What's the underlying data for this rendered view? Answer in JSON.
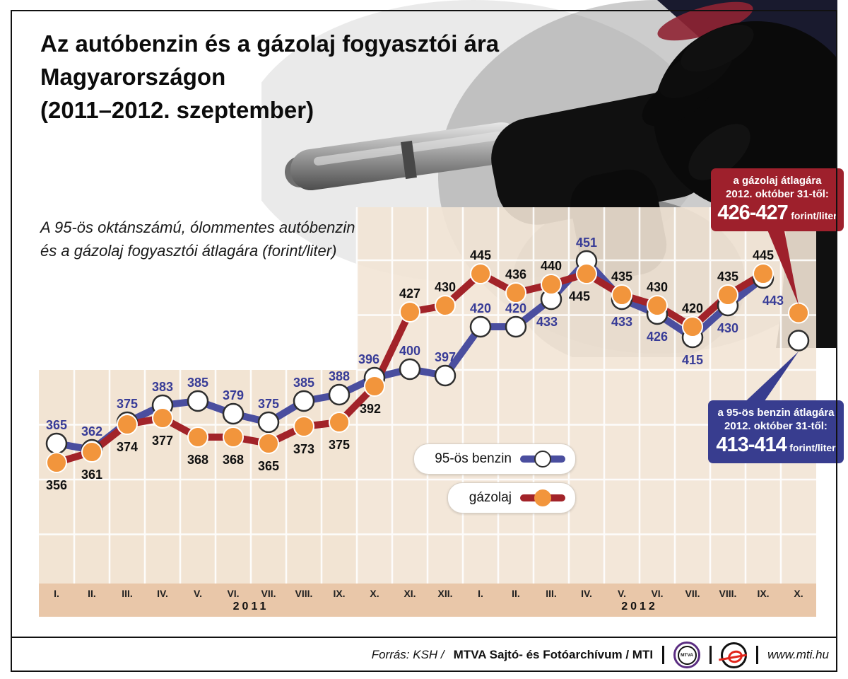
{
  "title": {
    "line1": "Az autóbenzin és a gázolaj fogyasztói ára",
    "line2": "Magyarországon",
    "line3": "(2011–2012. szeptember)"
  },
  "subtitle": {
    "line1": "A 95-ös oktánszámú, ólommentes autóbenzin",
    "line2": "és a gázolaj fogyasztói átlagára (forint/liter)"
  },
  "colors": {
    "panel_left": "#f2e4d3",
    "panel_tall": "rgba(242,228,213,0.9)",
    "axis_strip": "#e9c7a9",
    "benzin_line": "#4a4e9f",
    "benzin_label": "#383c97",
    "gazolaj_line": "#a22329",
    "orange_marker": "#f2953c",
    "callout_red": "#9e202c",
    "callout_blue": "#383d8f"
  },
  "chart_data": {
    "type": "line",
    "unit": "forint/liter",
    "months": [
      "I.",
      "II.",
      "III.",
      "IV.",
      "V.",
      "VI.",
      "VII.",
      "VIII.",
      "IX.",
      "X.",
      "XI.",
      "XII.",
      "I.",
      "II.",
      "III.",
      "IV.",
      "V.",
      "VI.",
      "VII.",
      "VIII.",
      "IX.",
      "X."
    ],
    "year_labels": [
      {
        "label": "2011",
        "from": 0,
        "to": 11
      },
      {
        "label": "2012",
        "from": 12,
        "to": 21
      }
    ],
    "y_implied_range": [
      340,
      465
    ],
    "series": [
      {
        "name": "95-ös benzin",
        "line_color": "#4a4e9f",
        "label_color": "#383c97",
        "marker_fill": "#ffffff",
        "marker_stroke": "#2e2e2e",
        "values": [
          365,
          362,
          375,
          383,
          385,
          379,
          375,
          385,
          388,
          396,
          400,
          397,
          420,
          420,
          433,
          451,
          433,
          426,
          415,
          430,
          443,
          413.5
        ],
        "label_pos": [
          "a",
          "a",
          "a",
          "a",
          "a",
          "a",
          "a",
          "a",
          "a",
          "a",
          "a",
          "a",
          "a",
          "a",
          "b",
          "a",
          "b",
          "b",
          "b",
          "b",
          "b",
          null
        ],
        "label_dx": [
          0,
          0,
          0,
          0,
          0,
          0,
          0,
          0,
          0,
          -8,
          0,
          0,
          0,
          0,
          -6,
          0,
          0,
          0,
          0,
          0,
          14,
          0
        ],
        "line_end_index": 20
      },
      {
        "name": "gázolaj",
        "line_color": "#a22329",
        "label_color": "#101010",
        "marker_fill": "#f2953c",
        "marker_stroke": "#ffffff",
        "values": [
          356,
          361,
          374,
          377,
          368,
          368,
          365,
          373,
          375,
          392,
          427,
          430,
          445,
          436,
          440,
          445,
          435,
          430,
          420,
          435,
          445,
          426.5
        ],
        "label_pos": [
          "b",
          "b",
          "b",
          "b",
          "b",
          "b",
          "b",
          "b",
          "b",
          "b",
          "a",
          "a",
          "a",
          "a",
          "a",
          "b",
          "a",
          "a",
          "a",
          "a",
          "a",
          null
        ],
        "label_dx": [
          0,
          0,
          0,
          0,
          0,
          0,
          0,
          0,
          0,
          -6,
          0,
          0,
          0,
          0,
          0,
          -10,
          0,
          0,
          0,
          0,
          0,
          0
        ],
        "line_end_index": 20
      }
    ]
  },
  "legend": {
    "benzin_label": "95-ös benzin",
    "gazolaj_label": "gázolaj"
  },
  "callouts": {
    "diesel": {
      "line1": "a gázolaj átlagára",
      "line2": "2012. október 31-től:",
      "value": "426-427",
      "unit": "forint/liter"
    },
    "petrol": {
      "line1": "a 95-ös benzin átlagára",
      "line2": "2012. október 31-től:",
      "value": "413-414",
      "unit": "forint/liter"
    }
  },
  "footer": {
    "source_prefix": "Forrás: KSH /",
    "source_main": "MTVA Sajtó- és Fotóarchívum / MTI",
    "mtva_logo_label": "MTVA",
    "url": "www.mti.hu"
  }
}
